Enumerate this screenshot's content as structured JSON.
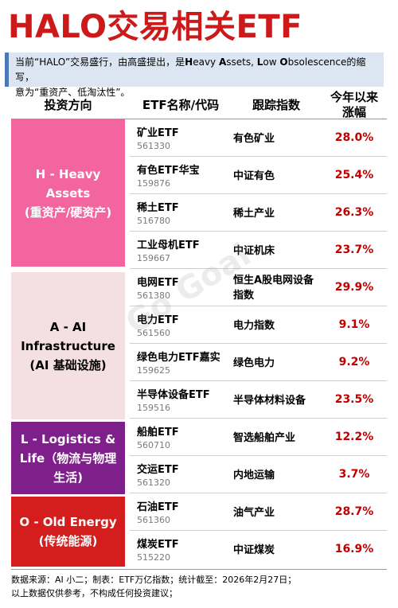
{
  "title": "HALO交易相关ETF",
  "intro": {
    "line1_pre": "当前“HALO”交易盛行，由高盛提出，是",
    "h": "H",
    "eavy": "eavy ",
    "a": "A",
    "ssets": "ssets, ",
    "l": "L",
    "ow": "ow ",
    "o": "O",
    "line1_post": "bsolescence的缩写，",
    "line2": "意为“重资产、低淘汰性”。"
  },
  "headers": {
    "direction": "投资方向",
    "etf": "ETF名称/代码",
    "index": "跟踪指数",
    "change_l1": "今年以来",
    "change_l2": "涨幅"
  },
  "categories": [
    {
      "line1": "H - Heavy Assets",
      "line2": "(重资产/硬资产)",
      "line3": "",
      "color": "#f2659f",
      "text_color": "#ffffff"
    },
    {
      "line1": "A - AI",
      "line2": "Infrastructure",
      "line3": "(AI 基础设施)",
      "color": "#f4dfe2",
      "text_color": "#000000"
    },
    {
      "line1": "L - Logistics &",
      "line2": "Life（物流与物理",
      "line3": "生活)",
      "color": "#7e1f8c",
      "text_color": "#ffffff"
    },
    {
      "line1": "O - Old Energy",
      "line2": "(传统能源)",
      "line3": "",
      "color": "#d41e1e",
      "text_color": "#ffffff"
    }
  ],
  "rows": [
    {
      "name": "矿业ETF",
      "code": "561330",
      "index": "有色矿业",
      "change": "28.0%"
    },
    {
      "name": "有色ETF华宝",
      "code": "159876",
      "index": "中证有色",
      "change": "25.4%"
    },
    {
      "name": "稀土ETF",
      "code": "516780",
      "index": "稀土产业",
      "change": "26.3%"
    },
    {
      "name": "工业母机ETF",
      "code": "159667",
      "index": "中证机床",
      "change": "23.7%"
    },
    {
      "name": "电网ETF",
      "code": "561380",
      "index": "恒生A股电网设备指数",
      "change": "29.9%"
    },
    {
      "name": "电力ETF",
      "code": "561560",
      "index": "电力指数",
      "change": "9.1%"
    },
    {
      "name": "绿色电力ETF嘉实",
      "code": "159625",
      "index": "绿色电力",
      "change": "9.2%"
    },
    {
      "name": "半导体设备ETF",
      "code": "159516",
      "index": "半导体材料设备",
      "change": "23.5%"
    },
    {
      "name": "船舶ETF",
      "code": "560710",
      "index": "智选船舶产业",
      "change": "12.2%"
    },
    {
      "name": "交运ETF",
      "code": "561320",
      "index": "内地运输",
      "change": "3.7%"
    },
    {
      "name": "石油ETF",
      "code": "561360",
      "index": "油气产业",
      "change": "28.7%"
    },
    {
      "name": "煤炭ETF",
      "code": "515220",
      "index": "中证煤炭",
      "change": "16.9%"
    }
  ],
  "watermark": "Go Goal",
  "footer": {
    "line1": "数据来源：AI 小二；制表：ETF万亿指数；统计截至：2026年2月27日；",
    "line2": "以上数据仅供参考，不构成任何投资建议；"
  }
}
